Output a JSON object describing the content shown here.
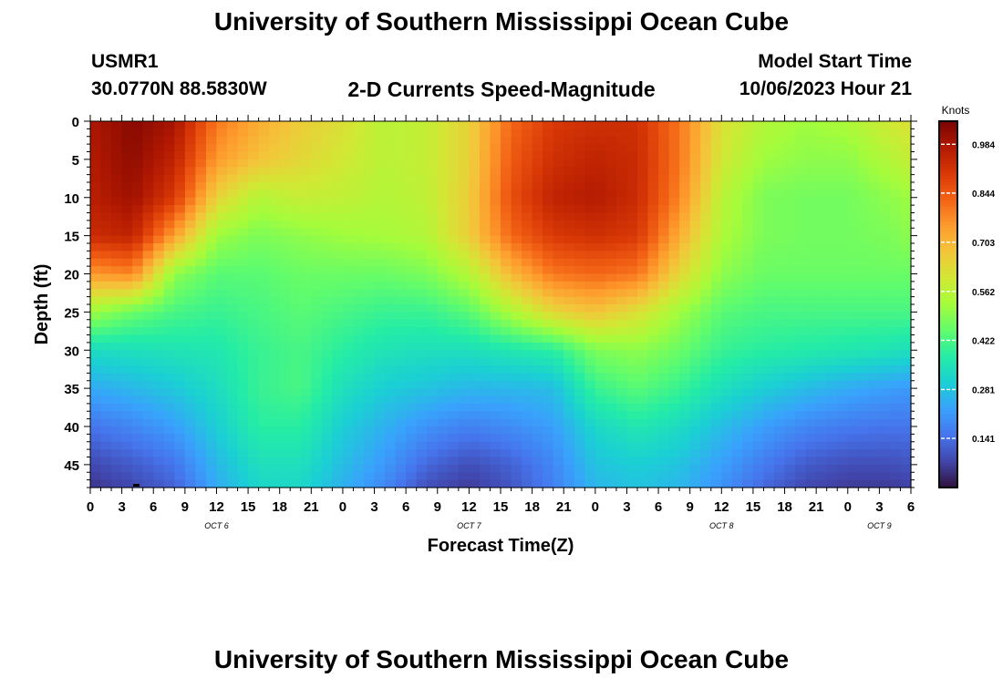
{
  "page": {
    "title": "University of Southern Mississippi Ocean Cube",
    "bottom_title": "University of Southern Mississippi Ocean Cube",
    "station": "USMR1",
    "coords": "30.0770N  88.5830W",
    "subtitle": "2-D Currents Speed-Magnitude",
    "model_start_label": "Model Start Time",
    "model_start_value": "10/06/2023 Hour 21"
  },
  "chart_data": {
    "type": "heatmap",
    "title": "2-D Currents Speed-Magnitude",
    "xlabel": "Forecast Time(Z)",
    "ylabel": "Depth (ft)",
    "x_ticks": [
      "0",
      "3",
      "6",
      "9",
      "12",
      "15",
      "18",
      "21",
      "0",
      "3",
      "6",
      "9",
      "12",
      "15",
      "18",
      "21",
      "0",
      "3",
      "6",
      "9",
      "12",
      "15",
      "18",
      "21",
      "0",
      "3",
      "6"
    ],
    "x_range_hours": [
      0,
      78
    ],
    "date_labels": [
      {
        "hour": 12,
        "text": "OCT 6"
      },
      {
        "hour": 36,
        "text": "OCT 7"
      },
      {
        "hour": 60,
        "text": "OCT 8"
      },
      {
        "hour": 75,
        "text": "OCT 9"
      }
    ],
    "y_ticks": [
      0,
      5,
      10,
      15,
      20,
      25,
      30,
      35,
      40,
      45
    ],
    "y_range_ft": [
      0,
      48
    ],
    "y_inverted": true,
    "colorbar": {
      "label": "Knots",
      "range": [
        0.0,
        1.05
      ],
      "ticks": [
        "0.984",
        "0.844",
        "0.703",
        "0.562",
        "0.422",
        "0.281",
        "0.141"
      ],
      "colormap": [
        "#30123b",
        "#4145ab",
        "#4675ed",
        "#39a2fc",
        "#1bcfd4",
        "#24eca6",
        "#61fc6c",
        "#a4fc3b",
        "#d1e834",
        "#f3c63a",
        "#fe9b2d",
        "#f36315",
        "#d93806",
        "#b11901",
        "#7a0402"
      ]
    },
    "anchors": {
      "hours": [
        0,
        4,
        8,
        12,
        16,
        20,
        24,
        28,
        32,
        36,
        40,
        44,
        48,
        52,
        56,
        60,
        64,
        68,
        72,
        76,
        78
      ],
      "depths_ft": [
        0,
        5,
        10,
        15,
        20,
        25,
        30,
        35,
        40,
        45,
        48
      ],
      "speed_knots_by_depth": [
        [
          0.98,
          1.03,
          0.99,
          0.8,
          0.72,
          0.66,
          0.62,
          0.56,
          0.58,
          0.65,
          0.82,
          0.9,
          0.92,
          0.92,
          0.8,
          0.62,
          0.55,
          0.52,
          0.54,
          0.6,
          0.62
        ],
        [
          0.97,
          1.02,
          0.95,
          0.75,
          0.68,
          0.64,
          0.6,
          0.56,
          0.58,
          0.65,
          0.84,
          0.92,
          0.95,
          0.93,
          0.8,
          0.6,
          0.52,
          0.5,
          0.5,
          0.55,
          0.58
        ],
        [
          0.96,
          1.0,
          0.9,
          0.65,
          0.55,
          0.58,
          0.57,
          0.55,
          0.57,
          0.66,
          0.86,
          0.95,
          0.97,
          0.93,
          0.78,
          0.56,
          0.48,
          0.47,
          0.47,
          0.5,
          0.52
        ],
        [
          0.93,
          0.95,
          0.74,
          0.52,
          0.48,
          0.5,
          0.52,
          0.53,
          0.55,
          0.66,
          0.82,
          0.9,
          0.92,
          0.9,
          0.72,
          0.54,
          0.48,
          0.47,
          0.47,
          0.48,
          0.5
        ],
        [
          0.75,
          0.78,
          0.5,
          0.44,
          0.44,
          0.46,
          0.46,
          0.46,
          0.48,
          0.55,
          0.7,
          0.8,
          0.82,
          0.8,
          0.64,
          0.5,
          0.46,
          0.46,
          0.46,
          0.46,
          0.46
        ],
        [
          0.52,
          0.46,
          0.42,
          0.4,
          0.42,
          0.44,
          0.42,
          0.4,
          0.4,
          0.44,
          0.54,
          0.64,
          0.68,
          0.62,
          0.52,
          0.44,
          0.42,
          0.42,
          0.42,
          0.42,
          0.42
        ],
        [
          0.33,
          0.34,
          0.35,
          0.36,
          0.4,
          0.42,
          0.38,
          0.35,
          0.34,
          0.34,
          0.36,
          0.38,
          0.48,
          0.5,
          0.46,
          0.4,
          0.38,
          0.37,
          0.36,
          0.35,
          0.34
        ],
        [
          0.24,
          0.26,
          0.29,
          0.33,
          0.4,
          0.42,
          0.34,
          0.3,
          0.28,
          0.26,
          0.26,
          0.27,
          0.4,
          0.44,
          0.4,
          0.34,
          0.3,
          0.27,
          0.24,
          0.22,
          0.21
        ],
        [
          0.15,
          0.18,
          0.22,
          0.3,
          0.38,
          0.38,
          0.3,
          0.25,
          0.2,
          0.17,
          0.19,
          0.22,
          0.32,
          0.36,
          0.33,
          0.27,
          0.22,
          0.18,
          0.16,
          0.15,
          0.15
        ],
        [
          0.08,
          0.11,
          0.15,
          0.26,
          0.34,
          0.34,
          0.27,
          0.21,
          0.13,
          0.09,
          0.12,
          0.18,
          0.28,
          0.3,
          0.28,
          0.22,
          0.16,
          0.11,
          0.09,
          0.09,
          0.1
        ],
        [
          0.05,
          0.08,
          0.12,
          0.24,
          0.32,
          0.32,
          0.25,
          0.18,
          0.09,
          0.06,
          0.1,
          0.17,
          0.26,
          0.28,
          0.26,
          0.2,
          0.13,
          0.08,
          0.06,
          0.06,
          0.07
        ]
      ]
    }
  }
}
